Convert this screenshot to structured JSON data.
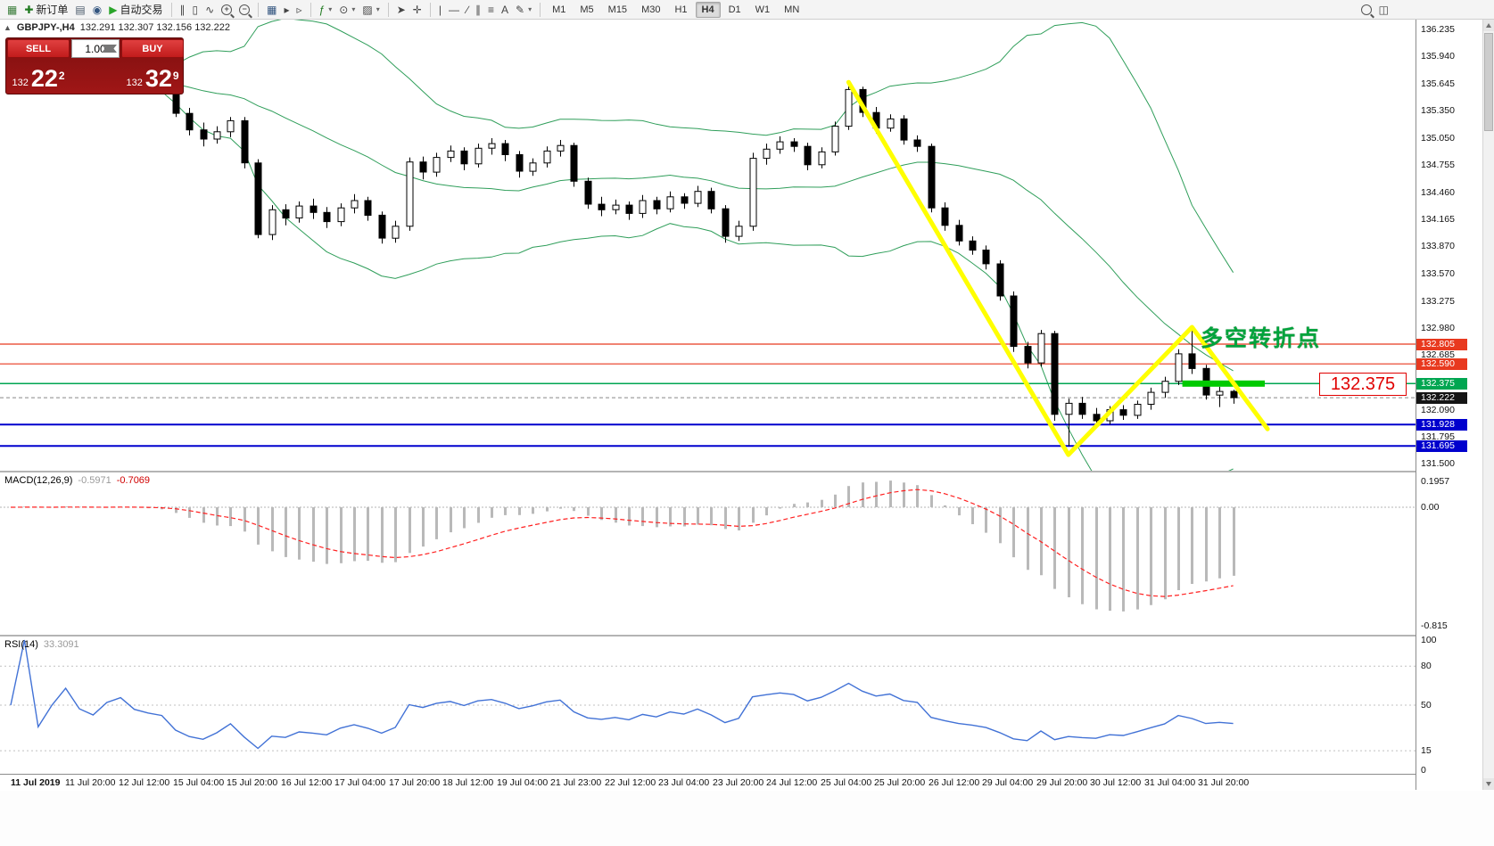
{
  "toolbar": {
    "items": [
      {
        "name": "terminal-icon",
        "glyph": "▦",
        "color": "#3a7d3a"
      },
      {
        "name": "new-order-button",
        "glyph": "✚",
        "color": "#1f7a1f",
        "label": "新订单"
      },
      {
        "name": "profiles-icon",
        "glyph": "▤",
        "color": "#4a5a6a"
      },
      {
        "name": "market-watch-icon",
        "glyph": "◉",
        "color": "#33557f"
      },
      {
        "name": "autotrading-button",
        "glyph": "▶",
        "color": "#2aa52a",
        "label": "自动交易"
      },
      {
        "sep": true,
        "name": "separator-1"
      },
      {
        "name": "bar-chart-icon",
        "glyph": "∥",
        "color": "#444444"
      },
      {
        "name": "candlestick-chart-icon",
        "glyph": "▯",
        "color": "#444444"
      },
      {
        "name": "line-chart-icon",
        "glyph": "∿",
        "color": "#444444"
      },
      {
        "name": "zoom-in-icon",
        "mag": "+"
      },
      {
        "name": "zoom-out-icon",
        "mag": "−"
      },
      {
        "sep": true,
        "name": "separator-2"
      },
      {
        "name": "tile-windows-icon",
        "glyph": "▦",
        "color": "#33557f"
      },
      {
        "name": "auto-scroll-icon",
        "glyph": "▸",
        "color": "#444444"
      },
      {
        "name": "chart-shift-icon",
        "glyph": "▹",
        "color": "#444444"
      },
      {
        "sep": true,
        "name": "separator-3"
      },
      {
        "name": "indicators-icon",
        "glyph": "ƒ",
        "color": "#1f7a1f",
        "caret": true
      },
      {
        "name": "periods-icon",
        "glyph": "⊙",
        "color": "#444444",
        "caret": true
      },
      {
        "name": "templates-icon",
        "glyph": "▨",
        "color": "#444444",
        "caret": true
      },
      {
        "sep": true,
        "name": "separator-4"
      },
      {
        "name": "cursor-icon",
        "glyph": "➤",
        "color": "#444444"
      },
      {
        "name": "crosshair-icon",
        "glyph": "✛",
        "color": "#444444"
      },
      {
        "sep": true,
        "name": "separator-5"
      },
      {
        "name": "vertical-line-icon",
        "glyph": "|",
        "color": "#444444"
      },
      {
        "name": "horizontal-line-icon",
        "glyph": "—",
        "color": "#444444"
      },
      {
        "name": "trendline-icon",
        "glyph": "∕",
        "color": "#444444"
      },
      {
        "name": "channel-icon",
        "glyph": "∥",
        "color": "#444444"
      },
      {
        "name": "fibonacci-icon",
        "glyph": "≡",
        "color": "#444444"
      },
      {
        "name": "text-icon",
        "glyph": "A",
        "color": "#444444"
      },
      {
        "name": "arrow-tools-icon",
        "glyph": "✎",
        "color": "#444444",
        "caret": true
      },
      {
        "sep": true,
        "name": "separator-6"
      }
    ],
    "timeframes": [
      "M1",
      "M5",
      "M15",
      "M30",
      "H1",
      "H4",
      "D1",
      "W1",
      "MN"
    ],
    "active_timeframe": "H4",
    "right_items": [
      {
        "name": "search-icon",
        "mag": ""
      },
      {
        "name": "new-window-icon",
        "glyph": "◫",
        "color": "#444444"
      }
    ]
  },
  "chart_header": {
    "collapse_icon": "▲",
    "symbol_period": "GBPJPY-,H4",
    "ohlc": "132.291 132.307 132.156 132.222"
  },
  "trade_panel": {
    "sell_label": "SELL",
    "buy_label": "BUY",
    "volume": "1.00",
    "sell_price_main": "132",
    "sell_price_big": "22",
    "sell_price_sup": "2",
    "buy_price_main": "132",
    "buy_price_big": "32",
    "buy_price_sup": "9"
  },
  "annotations": {
    "turning_point_text": "多空转折点",
    "price_label_box": "132.375"
  },
  "price_axis": {
    "labels": [
      "136.235",
      "135.940",
      "135.645",
      "135.350",
      "135.050",
      "134.755",
      "134.460",
      "134.165",
      "133.870",
      "133.570",
      "133.275",
      "132.980",
      "132.685",
      "132.090",
      "131.795",
      "131.500"
    ],
    "tags": [
      {
        "text": "132.805",
        "price": 132.805,
        "bg": "#e8391f"
      },
      {
        "text": "132.590",
        "price": 132.59,
        "bg": "#e8391f"
      },
      {
        "text": "132.375",
        "price": 132.375,
        "bg": "#00a651"
      },
      {
        "text": "132.222",
        "price": 132.222,
        "bg": "#151515"
      },
      {
        "text": "131.928",
        "price": 131.928,
        "bg": "#0000cd"
      },
      {
        "text": "131.695",
        "price": 131.695,
        "bg": "#0000cd"
      }
    ]
  },
  "macd": {
    "label": "MACD(12,26,9)",
    "value_main": "-0.5971",
    "value_signal": "-0.7069",
    "axis_top": "0.1957",
    "axis_zero": "0.00",
    "axis_bottom": "-0.815"
  },
  "rsi": {
    "label": "RSI(14)",
    "value": "33.3091",
    "axis": [
      100,
      80,
      50,
      15,
      0
    ],
    "levels": [
      80,
      50,
      15
    ]
  },
  "time_axis": [
    "11 Jul 2019",
    "11 Jul 20:00",
    "12 Jul 12:00",
    "15 Jul 04:00",
    "15 Jul 20:00",
    "16 Jul 12:00",
    "17 Jul 04:00",
    "17 Jul 20:00",
    "18 Jul 12:00",
    "19 Jul 04:00",
    "21 Jul 23:00",
    "22 Jul 12:00",
    "23 Jul 04:00",
    "23 Jul 20:00",
    "24 Jul 12:00",
    "25 Jul 04:00",
    "25 Jul 20:00",
    "26 Jul 12:00",
    "29 Jul 04:00",
    "29 Jul 20:00",
    "30 Jul 12:00",
    "31 Jul 04:00",
    "31 Jul 20:00"
  ],
  "chart_data": {
    "type": "candlestick",
    "symbol": "GBPJPY-",
    "period": "H4",
    "price_range": [
      131.5,
      136.235
    ],
    "colors": {
      "bull": "#ffffff",
      "bear": "#000000",
      "wick": "#000000",
      "bollinger": "#2f9e5a",
      "trendline_yellow": "#ffff00",
      "highlight_green": "#00ca00",
      "macd_histogram": "#b9b9b9",
      "macd_signal": "#ff2020",
      "rsi_line": "#4272d6"
    },
    "bollinger": {
      "period": 20,
      "deviation": 2
    },
    "hlines": [
      {
        "price": 132.805,
        "color": "#e8391f",
        "w": 1.2
      },
      {
        "price": 132.59,
        "color": "#e8391f",
        "w": 1.2
      },
      {
        "price": 132.375,
        "color": "#00a651",
        "w": 1.5
      },
      {
        "price": 132.222,
        "color": "#888888",
        "w": 1,
        "dash": "4 3"
      },
      {
        "price": 131.928,
        "color": "#0000cd",
        "w": 2
      },
      {
        "price": 131.695,
        "color": "#0000cd",
        "w": 2
      }
    ],
    "yellow_trendline": [
      [
        61,
        135.66
      ],
      [
        77,
        131.6
      ],
      [
        86,
        132.99
      ],
      [
        91.5,
        131.88
      ]
    ],
    "green_bar": {
      "from_bar": 85.3,
      "to_bar": 91.3,
      "price": 132.375
    },
    "candles": [
      [
        135.62,
        135.76,
        135.56,
        135.68
      ],
      [
        135.68,
        135.78,
        135.6,
        135.73
      ],
      [
        135.73,
        135.77,
        135.58,
        135.63
      ],
      [
        135.63,
        135.72,
        135.56,
        135.68
      ],
      [
        135.68,
        135.8,
        135.6,
        135.75
      ],
      [
        135.75,
        135.79,
        135.62,
        135.66
      ],
      [
        135.66,
        135.74,
        135.58,
        135.62
      ],
      [
        135.62,
        135.73,
        135.57,
        135.7
      ],
      [
        135.7,
        135.8,
        135.62,
        135.74
      ],
      [
        135.74,
        135.78,
        135.6,
        135.64
      ],
      [
        135.64,
        135.7,
        135.56,
        135.6
      ],
      [
        135.6,
        135.65,
        135.55,
        135.57
      ],
      [
        135.57,
        135.6,
        135.28,
        135.32
      ],
      [
        135.32,
        135.38,
        135.08,
        135.14
      ],
      [
        135.14,
        135.22,
        134.96,
        135.04
      ],
      [
        135.04,
        135.18,
        134.99,
        135.12
      ],
      [
        135.12,
        135.28,
        135.06,
        135.24
      ],
      [
        135.24,
        135.28,
        134.72,
        134.78
      ],
      [
        134.78,
        134.82,
        133.96,
        134.0
      ],
      [
        134.0,
        134.32,
        133.94,
        134.27
      ],
      [
        134.27,
        134.33,
        134.1,
        134.18
      ],
      [
        134.18,
        134.36,
        134.13,
        134.31
      ],
      [
        134.31,
        134.39,
        134.17,
        134.24
      ],
      [
        134.24,
        134.3,
        134.07,
        134.14
      ],
      [
        134.14,
        134.34,
        134.09,
        134.29
      ],
      [
        134.29,
        134.44,
        134.23,
        134.37
      ],
      [
        134.37,
        134.41,
        134.15,
        134.21
      ],
      [
        134.21,
        134.25,
        133.9,
        133.96
      ],
      [
        133.96,
        134.15,
        133.91,
        134.09
      ],
      [
        134.09,
        134.84,
        134.04,
        134.79
      ],
      [
        134.79,
        134.85,
        134.6,
        134.68
      ],
      [
        134.68,
        134.89,
        134.63,
        134.84
      ],
      [
        134.84,
        134.97,
        134.79,
        134.91
      ],
      [
        134.91,
        134.95,
        134.7,
        134.77
      ],
      [
        134.77,
        134.99,
        134.73,
        134.94
      ],
      [
        134.94,
        135.05,
        134.87,
        134.99
      ],
      [
        134.99,
        135.03,
        134.8,
        134.87
      ],
      [
        134.87,
        134.91,
        134.62,
        134.69
      ],
      [
        134.69,
        134.83,
        134.64,
        134.78
      ],
      [
        134.78,
        134.96,
        134.73,
        134.91
      ],
      [
        134.91,
        135.03,
        134.85,
        134.97
      ],
      [
        134.97,
        135.0,
        134.52,
        134.58
      ],
      [
        134.58,
        134.62,
        134.28,
        134.33
      ],
      [
        134.33,
        134.41,
        134.2,
        134.27
      ],
      [
        134.27,
        134.38,
        134.22,
        134.32
      ],
      [
        134.32,
        134.36,
        134.16,
        134.23
      ],
      [
        134.23,
        134.43,
        134.18,
        134.37
      ],
      [
        134.37,
        134.41,
        134.22,
        134.28
      ],
      [
        134.28,
        134.47,
        134.24,
        134.41
      ],
      [
        134.41,
        134.45,
        134.28,
        134.34
      ],
      [
        134.34,
        134.53,
        134.3,
        134.47
      ],
      [
        134.47,
        134.51,
        134.23,
        134.28
      ],
      [
        134.28,
        134.32,
        133.91,
        133.98
      ],
      [
        133.98,
        134.15,
        133.93,
        134.09
      ],
      [
        134.09,
        134.89,
        134.04,
        134.83
      ],
      [
        134.83,
        134.99,
        134.76,
        134.93
      ],
      [
        134.93,
        135.07,
        134.88,
        135.01
      ],
      [
        135.01,
        135.05,
        134.9,
        134.96
      ],
      [
        134.96,
        135.0,
        134.7,
        134.76
      ],
      [
        134.76,
        134.95,
        134.72,
        134.9
      ],
      [
        134.9,
        135.23,
        134.86,
        135.18
      ],
      [
        135.18,
        135.645,
        135.14,
        135.58
      ],
      [
        135.58,
        135.61,
        135.28,
        135.33
      ],
      [
        135.33,
        135.39,
        135.1,
        135.16
      ],
      [
        135.16,
        135.31,
        135.12,
        135.26
      ],
      [
        135.26,
        135.3,
        134.98,
        135.03
      ],
      [
        135.03,
        135.08,
        134.9,
        134.96
      ],
      [
        134.96,
        134.99,
        134.24,
        134.29
      ],
      [
        134.29,
        134.35,
        134.04,
        134.1
      ],
      [
        134.1,
        134.16,
        133.88,
        133.93
      ],
      [
        133.93,
        133.98,
        133.78,
        133.83
      ],
      [
        133.83,
        133.88,
        133.62,
        133.68
      ],
      [
        133.68,
        133.72,
        133.28,
        133.33
      ],
      [
        133.33,
        133.38,
        132.72,
        132.78
      ],
      [
        132.78,
        132.83,
        132.54,
        132.6
      ],
      [
        132.6,
        132.96,
        132.56,
        132.92
      ],
      [
        132.92,
        132.95,
        131.97,
        132.04
      ],
      [
        132.04,
        132.21,
        131.695,
        132.16
      ],
      [
        132.16,
        132.23,
        131.99,
        132.04
      ],
      [
        132.04,
        132.11,
        131.92,
        131.97
      ],
      [
        131.97,
        132.13,
        131.93,
        132.09
      ],
      [
        132.09,
        132.14,
        131.98,
        132.03
      ],
      [
        132.03,
        132.19,
        131.99,
        132.15
      ],
      [
        132.15,
        132.33,
        132.09,
        132.28
      ],
      [
        132.28,
        132.45,
        132.22,
        132.4
      ],
      [
        132.4,
        132.75,
        132.36,
        132.7
      ],
      [
        132.7,
        132.95,
        132.48,
        132.54
      ],
      [
        132.54,
        132.58,
        132.2,
        132.25
      ],
      [
        132.25,
        132.34,
        132.12,
        132.29
      ],
      [
        132.291,
        132.307,
        132.156,
        132.222
      ]
    ]
  }
}
